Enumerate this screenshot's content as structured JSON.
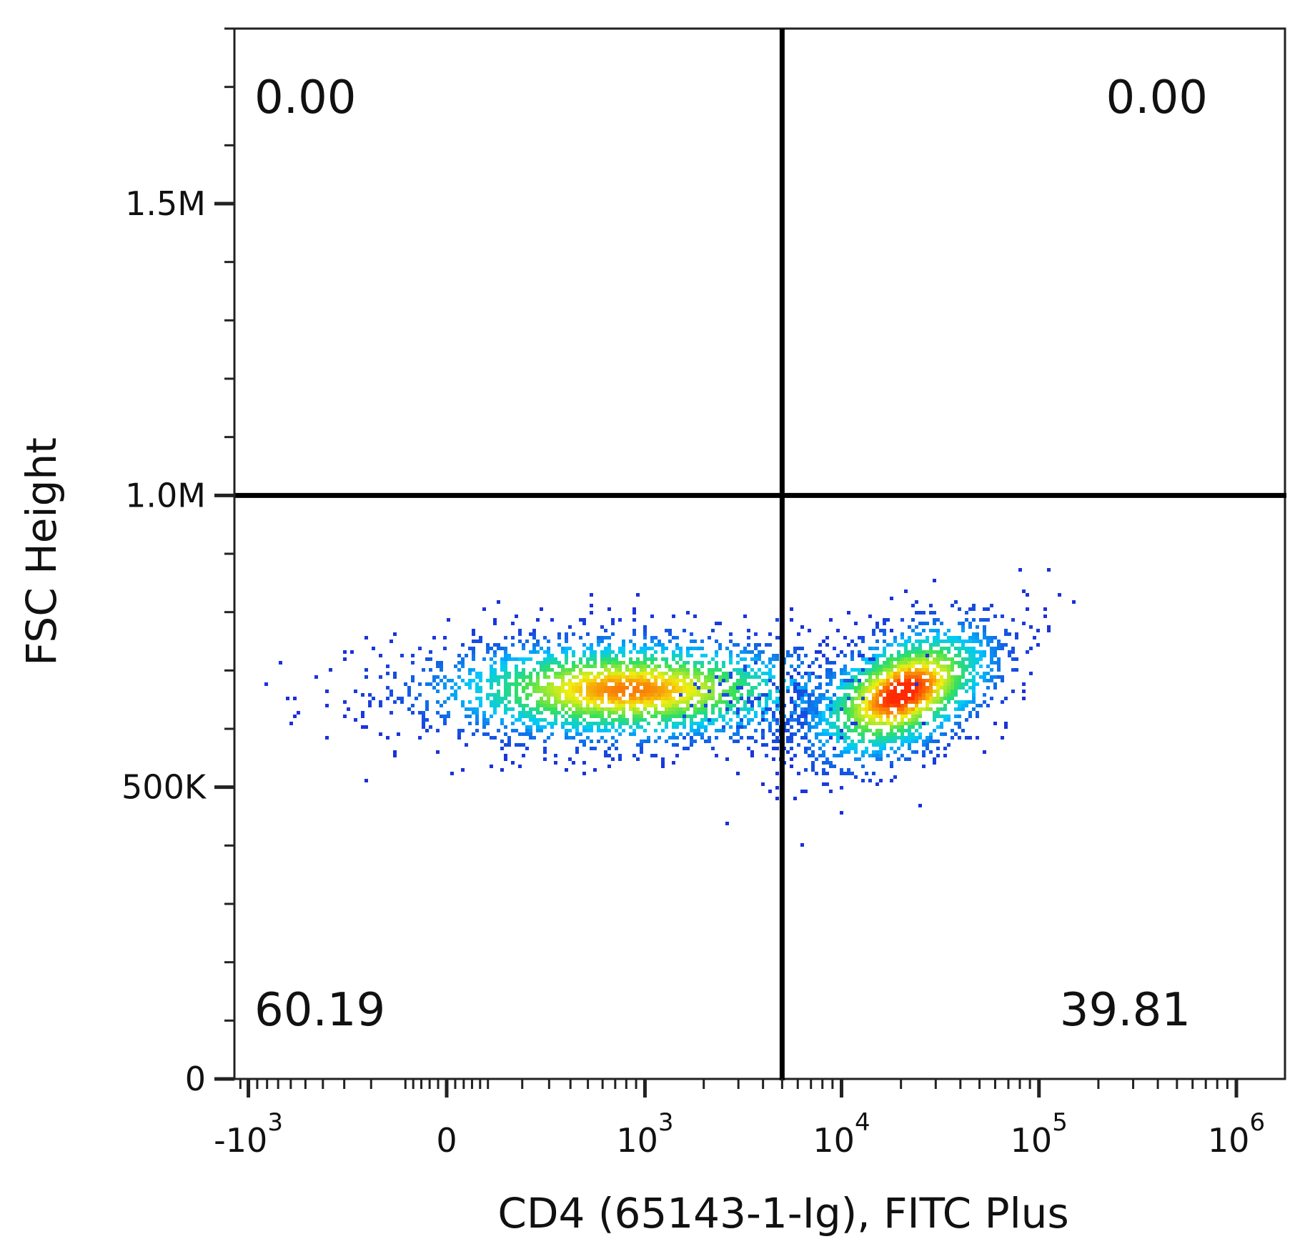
{
  "chart_data": {
    "type": "scatter",
    "xlabel": "CD4 (65143-1-Ig), FITC Plus",
    "ylabel": "FSC Height",
    "x_scale": "biexponential",
    "x_ticks": [
      {
        "value": -1000,
        "base": "-10",
        "exp": "3"
      },
      {
        "value": 0,
        "base": "0",
        "exp": ""
      },
      {
        "value": 1000,
        "base": "10",
        "exp": "3"
      },
      {
        "value": 10000,
        "base": "10",
        "exp": "4"
      },
      {
        "value": 100000,
        "base": "10",
        "exp": "5"
      },
      {
        "value": 1000000,
        "base": "10",
        "exp": "6"
      }
    ],
    "y_ticks": [
      {
        "value": 0,
        "label": "0"
      },
      {
        "value": 500000,
        "label": "500K"
      },
      {
        "value": 1000000,
        "label": "1.0M"
      },
      {
        "value": 1500000,
        "label": "1.5M"
      }
    ],
    "ylim": [
      0,
      1800000
    ],
    "gates": {
      "x": 5000,
      "y": 1000000
    },
    "quadrants": [
      {
        "position": "top-left",
        "value": "0.00"
      },
      {
        "position": "top-right",
        "value": "0.00"
      },
      {
        "position": "bottom-left",
        "value": "60.19"
      },
      {
        "position": "bottom-right",
        "value": "39.81"
      }
    ],
    "populations": [
      {
        "center_x": 800,
        "center_y": 670000,
        "fraction": 0.6019
      },
      {
        "center_x": 20000,
        "center_y": 665000,
        "fraction": 0.3981
      }
    ],
    "color_scale": [
      "#1c2fd9",
      "#00c8ff",
      "#35e05a",
      "#f2ee10",
      "#ff2a00"
    ]
  }
}
